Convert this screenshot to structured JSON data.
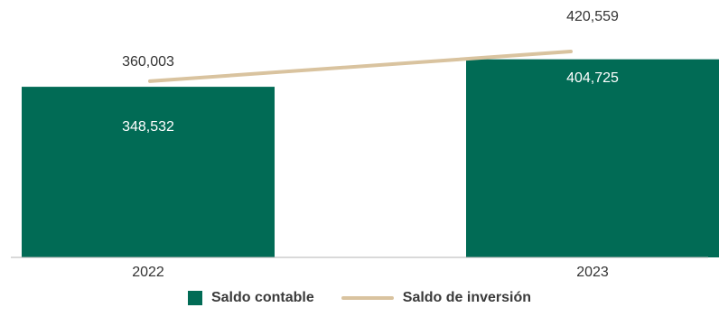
{
  "chart_data": {
    "type": "bar",
    "categories": [
      "2022",
      "2023"
    ],
    "series": [
      {
        "name": "Saldo contable",
        "kind": "bar",
        "values": [
          348532,
          404725
        ],
        "value_labels": [
          "348,532",
          "404,725"
        ],
        "color": "#016b55"
      },
      {
        "name": "Saldo de inversión",
        "kind": "line",
        "values": [
          360003,
          420559
        ],
        "value_labels": [
          "360,003",
          "420,559"
        ],
        "color": "#d9c39f"
      }
    ],
    "legend_position": "bottom",
    "grid": false
  },
  "colors": {
    "bar": "#016b55",
    "line": "#d9c39f",
    "bar_label": "#ffffff",
    "line_label": "#333333",
    "axis": "#b3b3b3"
  }
}
